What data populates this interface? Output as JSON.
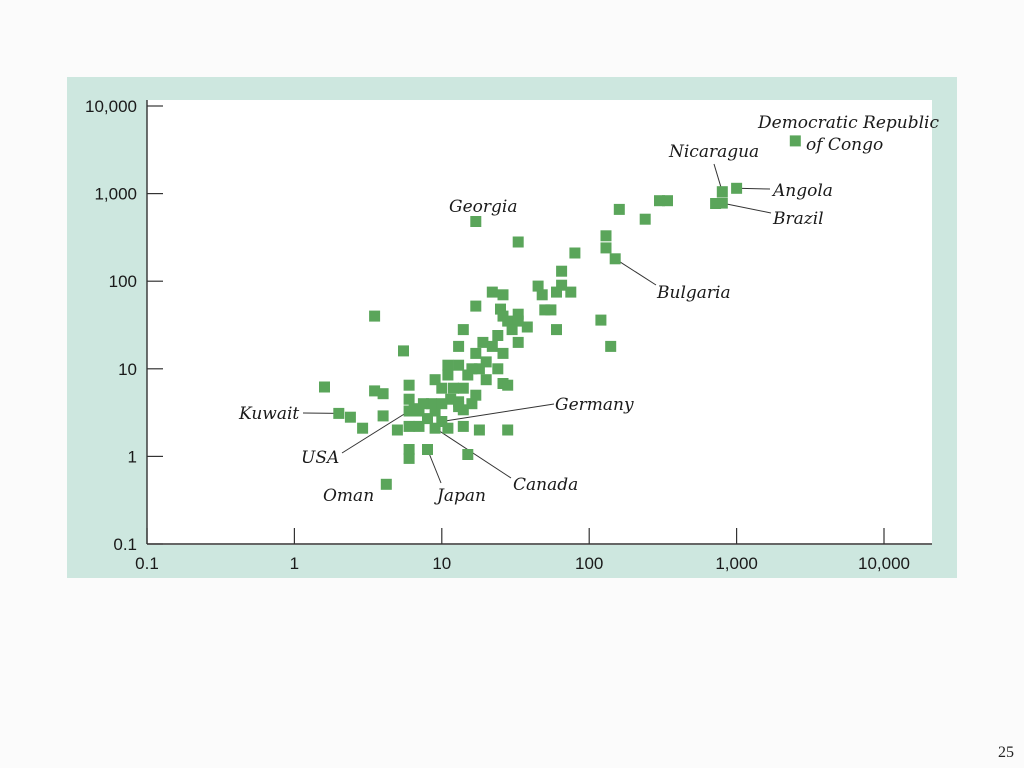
{
  "slide": {
    "page_number": "25"
  },
  "colors": {
    "panel": "#cde7df",
    "plot_bg": "#ffffff",
    "marker": "#5aa55a",
    "axis": "#333333"
  },
  "chart_data": {
    "type": "scatter",
    "title": "",
    "xlabel": "",
    "ylabel": "",
    "xscale": "log",
    "yscale": "log",
    "xlim": [
      0.1,
      20000
    ],
    "ylim": [
      0.1,
      15000
    ],
    "grid": false,
    "legend": "none",
    "x_ticks": [
      {
        "value": 0.1,
        "label": "0.1"
      },
      {
        "value": 1,
        "label": "1"
      },
      {
        "value": 10,
        "label": "10"
      },
      {
        "value": 100,
        "label": "100"
      },
      {
        "value": 1000,
        "label": "1,000"
      },
      {
        "value": 10000,
        "label": "10,000"
      }
    ],
    "y_ticks": [
      {
        "value": 0.1,
        "label": "0.1"
      },
      {
        "value": 1,
        "label": "1"
      },
      {
        "value": 10,
        "label": "10"
      },
      {
        "value": 100,
        "label": "100"
      },
      {
        "value": 1000,
        "label": "1,000"
      },
      {
        "value": 10000,
        "label": "10,000"
      }
    ],
    "labeled_points": [
      {
        "name": "Georgia",
        "x": 17,
        "y": 480
      },
      {
        "name": "Nicaragua",
        "x": 800,
        "y": 1050
      },
      {
        "name": "Angola",
        "x": 1000,
        "y": 1150
      },
      {
        "name": "Brazil",
        "x": 800,
        "y": 780
      },
      {
        "name": "Democratic Republic of Congo",
        "x": 2500,
        "y": 4000
      },
      {
        "name": "Bulgaria",
        "x": 150,
        "y": 180
      },
      {
        "name": "Germany",
        "x": 10,
        "y": 2.5
      },
      {
        "name": "Kuwait",
        "x": 2,
        "y": 3.1
      },
      {
        "name": "USA",
        "x": 6,
        "y": 3.3
      },
      {
        "name": "Canada",
        "x": 9,
        "y": 2.1
      },
      {
        "name": "Japan",
        "x": 8,
        "y": 1.2
      },
      {
        "name": "Oman",
        "x": 4.2,
        "y": 0.48
      }
    ],
    "points": [
      {
        "x": 17,
        "y": 480
      },
      {
        "x": 33,
        "y": 280
      },
      {
        "x": 80,
        "y": 210
      },
      {
        "x": 160,
        "y": 660
      },
      {
        "x": 240,
        "y": 510
      },
      {
        "x": 300,
        "y": 830
      },
      {
        "x": 340,
        "y": 830
      },
      {
        "x": 720,
        "y": 770
      },
      {
        "x": 800,
        "y": 780
      },
      {
        "x": 800,
        "y": 1050
      },
      {
        "x": 1000,
        "y": 1150
      },
      {
        "x": 2500,
        "y": 4000
      },
      {
        "x": 130,
        "y": 330
      },
      {
        "x": 130,
        "y": 240
      },
      {
        "x": 150,
        "y": 180
      },
      {
        "x": 120,
        "y": 36
      },
      {
        "x": 140,
        "y": 18
      },
      {
        "x": 65,
        "y": 130
      },
      {
        "x": 65,
        "y": 90
      },
      {
        "x": 75,
        "y": 75
      },
      {
        "x": 60,
        "y": 75
      },
      {
        "x": 45,
        "y": 88
      },
      {
        "x": 48,
        "y": 70
      },
      {
        "x": 50,
        "y": 47
      },
      {
        "x": 55,
        "y": 47
      },
      {
        "x": 60,
        "y": 28
      },
      {
        "x": 22,
        "y": 75
      },
      {
        "x": 26,
        "y": 70
      },
      {
        "x": 25,
        "y": 48
      },
      {
        "x": 26,
        "y": 40
      },
      {
        "x": 28,
        "y": 35
      },
      {
        "x": 33,
        "y": 42
      },
      {
        "x": 33,
        "y": 35
      },
      {
        "x": 30,
        "y": 28
      },
      {
        "x": 38,
        "y": 30
      },
      {
        "x": 33,
        "y": 20
      },
      {
        "x": 17,
        "y": 52
      },
      {
        "x": 14,
        "y": 28
      },
      {
        "x": 13,
        "y": 18
      },
      {
        "x": 19,
        "y": 20
      },
      {
        "x": 17,
        "y": 15
      },
      {
        "x": 22,
        "y": 18
      },
      {
        "x": 24,
        "y": 24
      },
      {
        "x": 26,
        "y": 15
      },
      {
        "x": 20,
        "y": 12
      },
      {
        "x": 18,
        "y": 10
      },
      {
        "x": 24,
        "y": 10
      },
      {
        "x": 26,
        "y": 6.8
      },
      {
        "x": 28,
        "y": 6.5
      },
      {
        "x": 20,
        "y": 7.5
      },
      {
        "x": 16,
        "y": 10
      },
      {
        "x": 15,
        "y": 8.5
      },
      {
        "x": 13,
        "y": 11
      },
      {
        "x": 11,
        "y": 11
      },
      {
        "x": 11,
        "y": 8.5
      },
      {
        "x": 12,
        "y": 6
      },
      {
        "x": 14,
        "y": 6
      },
      {
        "x": 10,
        "y": 6
      },
      {
        "x": 9,
        "y": 7.5
      },
      {
        "x": 11.5,
        "y": 4.5
      },
      {
        "x": 13,
        "y": 4.2
      },
      {
        "x": 14,
        "y": 3.4
      },
      {
        "x": 16,
        "y": 4
      },
      {
        "x": 17,
        "y": 5
      },
      {
        "x": 10,
        "y": 4
      },
      {
        "x": 9,
        "y": 3.3
      },
      {
        "x": 8.5,
        "y": 4
      },
      {
        "x": 7.5,
        "y": 4
      },
      {
        "x": 7,
        "y": 3.3
      },
      {
        "x": 6.5,
        "y": 3.5
      },
      {
        "x": 6,
        "y": 4.5
      },
      {
        "x": 6,
        "y": 3.3
      },
      {
        "x": 6,
        "y": 6.5
      },
      {
        "x": 8,
        "y": 2.7
      },
      {
        "x": 10,
        "y": 2.5
      },
      {
        "x": 11,
        "y": 2.1
      },
      {
        "x": 9,
        "y": 2.1
      },
      {
        "x": 14,
        "y": 2.2
      },
      {
        "x": 13,
        "y": 3.7
      },
      {
        "x": 7,
        "y": 2.2
      },
      {
        "x": 6,
        "y": 2.2
      },
      {
        "x": 5,
        "y": 2
      },
      {
        "x": 4,
        "y": 2.9
      },
      {
        "x": 4,
        "y": 5.2
      },
      {
        "x": 3.5,
        "y": 5.6
      },
      {
        "x": 2.9,
        "y": 2.1
      },
      {
        "x": 2.4,
        "y": 2.8
      },
      {
        "x": 2,
        "y": 3.1
      },
      {
        "x": 1.6,
        "y": 6.2
      },
      {
        "x": 3.5,
        "y": 40
      },
      {
        "x": 5.5,
        "y": 16
      },
      {
        "x": 6,
        "y": 1.2
      },
      {
        "x": 6,
        "y": 0.95
      },
      {
        "x": 8,
        "y": 1.2
      },
      {
        "x": 15,
        "y": 1.05
      },
      {
        "x": 18,
        "y": 2
      },
      {
        "x": 28,
        "y": 2
      },
      {
        "x": 4.2,
        "y": 0.48
      }
    ]
  }
}
